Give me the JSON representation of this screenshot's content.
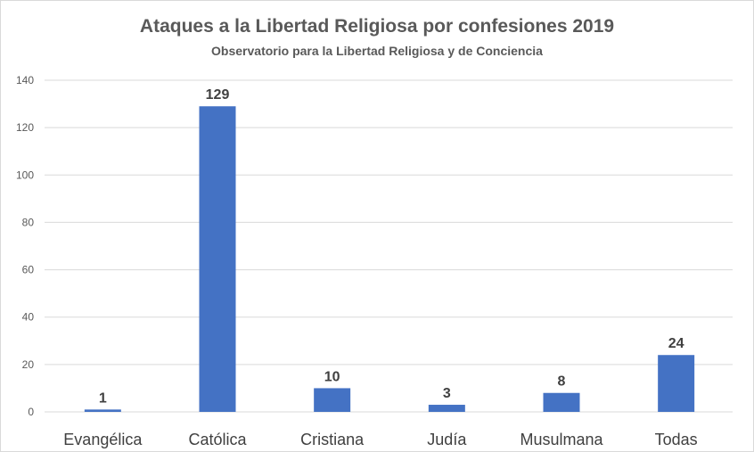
{
  "chart_data": {
    "type": "bar",
    "title": "Ataques a la Libertad Religiosa por confesiones 2019",
    "subtitle": "Observatorio para la Libertad Religiosa y de Conciencia",
    "categories": [
      "Evangélica",
      "Católica",
      "Cristiana",
      "Judía",
      "Musulmana",
      "Todas"
    ],
    "values": [
      1,
      129,
      10,
      3,
      8,
      24
    ],
    "ylim": [
      0,
      140
    ],
    "yticks": [
      0,
      20,
      40,
      60,
      80,
      100,
      120,
      140
    ],
    "grid": true,
    "legend": "none",
    "bar_color": "#4472c4",
    "grid_color": "#d9d9d9"
  }
}
